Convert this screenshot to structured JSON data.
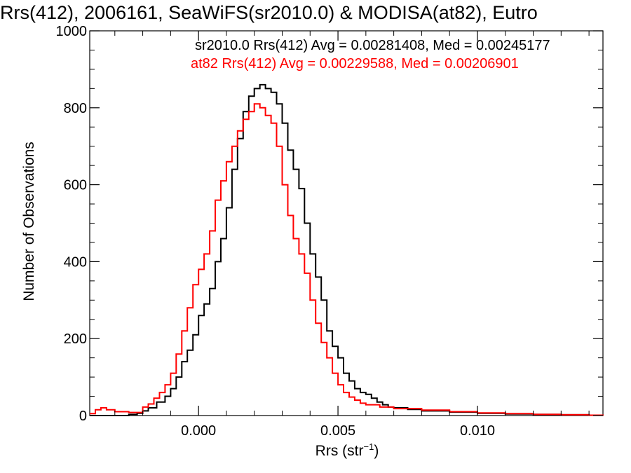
{
  "chart_data": {
    "type": "line",
    "subtype": "step-histogram",
    "title": "Rrs(412), 2006161, SeaWiFS(sr2010.0) & MODISA(at82), Eutro",
    "xlabel": {
      "base": "Rrs (str",
      "sup": "−1",
      "tail": ")"
    },
    "ylabel": "Number of Observations",
    "xlim": [
      -0.0039,
      0.0145
    ],
    "ylim": [
      0,
      1000
    ],
    "xticks": [
      {
        "value": 0.0,
        "label": "0.000"
      },
      {
        "value": 0.005,
        "label": "0.005"
      },
      {
        "value": 0.01,
        "label": "0.010"
      }
    ],
    "yticks": [
      {
        "value": 0,
        "label": "0"
      },
      {
        "value": 200,
        "label": "200"
      },
      {
        "value": 400,
        "label": "400"
      },
      {
        "value": 600,
        "label": "600"
      },
      {
        "value": 800,
        "label": "800"
      },
      {
        "value": 1000,
        "label": "1000"
      }
    ],
    "grid": false,
    "annotations": [
      {
        "text": "sr2010.0 Rrs(412) Avg = 0.00281408, Med = 0.00245177",
        "color": "#000000"
      },
      {
        "text": "at82 Rrs(412) Avg = 0.00229588, Med = 0.00206901",
        "color": "#ff0000"
      }
    ],
    "series": [
      {
        "color": "#000000",
        "x": [
          -0.0039,
          -0.003,
          -0.0025,
          -0.0022,
          -0.002,
          -0.0018,
          -0.0015,
          -0.0012,
          -0.001,
          -0.0008,
          -0.0006,
          -0.0004,
          -0.0002,
          0.0,
          0.0002,
          0.0004,
          0.0006,
          0.0008,
          0.001,
          0.0012,
          0.0014,
          0.0016,
          0.0018,
          0.002,
          0.0022,
          0.0024,
          0.0026,
          0.0028,
          0.003,
          0.0032,
          0.0034,
          0.0036,
          0.0038,
          0.004,
          0.0042,
          0.0044,
          0.0046,
          0.0048,
          0.005,
          0.0052,
          0.0054,
          0.0056,
          0.0058,
          0.006,
          0.0062,
          0.0064,
          0.0066,
          0.0068,
          0.007,
          0.0075,
          0.008,
          0.009,
          0.01,
          0.011,
          0.012,
          0.013,
          0.014,
          0.0145
        ],
        "y": [
          0,
          0,
          3,
          6,
          12,
          20,
          35,
          50,
          70,
          100,
          140,
          170,
          210,
          260,
          290,
          330,
          400,
          460,
          540,
          640,
          720,
          790,
          830,
          850,
          860,
          850,
          840,
          810,
          760,
          690,
          640,
          590,
          500,
          420,
          360,
          300,
          220,
          180,
          150,
          110,
          90,
          70,
          60,
          55,
          45,
          35,
          28,
          22,
          20,
          16,
          12,
          9,
          6,
          4,
          3,
          2,
          1,
          0
        ]
      },
      {
        "color": "#ff0000",
        "x": [
          -0.0039,
          -0.0037,
          -0.0035,
          -0.0033,
          -0.003,
          -0.0025,
          -0.002,
          -0.0018,
          -0.0016,
          -0.0014,
          -0.0012,
          -0.001,
          -0.0008,
          -0.0006,
          -0.0004,
          -0.0002,
          0.0,
          0.0002,
          0.0004,
          0.0006,
          0.0008,
          0.001,
          0.0012,
          0.0014,
          0.0016,
          0.0018,
          0.002,
          0.0022,
          0.0024,
          0.0026,
          0.0028,
          0.003,
          0.0032,
          0.0034,
          0.0036,
          0.0038,
          0.004,
          0.0042,
          0.0044,
          0.0046,
          0.0048,
          0.005,
          0.0052,
          0.0054,
          0.0056,
          0.0058,
          0.006,
          0.0065,
          0.007,
          0.008,
          0.009,
          0.01,
          0.011,
          0.012,
          0.013,
          0.014,
          0.0145
        ],
        "y": [
          5,
          15,
          20,
          15,
          10,
          8,
          22,
          30,
          45,
          60,
          80,
          110,
          160,
          220,
          280,
          340,
          380,
          420,
          480,
          560,
          610,
          660,
          700,
          740,
          770,
          790,
          810,
          800,
          780,
          760,
          700,
          600,
          520,
          460,
          420,
          370,
          300,
          240,
          190,
          150,
          110,
          80,
          60,
          48,
          40,
          32,
          28,
          22,
          18,
          14,
          10,
          7,
          5,
          3,
          2,
          1,
          0
        ]
      }
    ]
  }
}
